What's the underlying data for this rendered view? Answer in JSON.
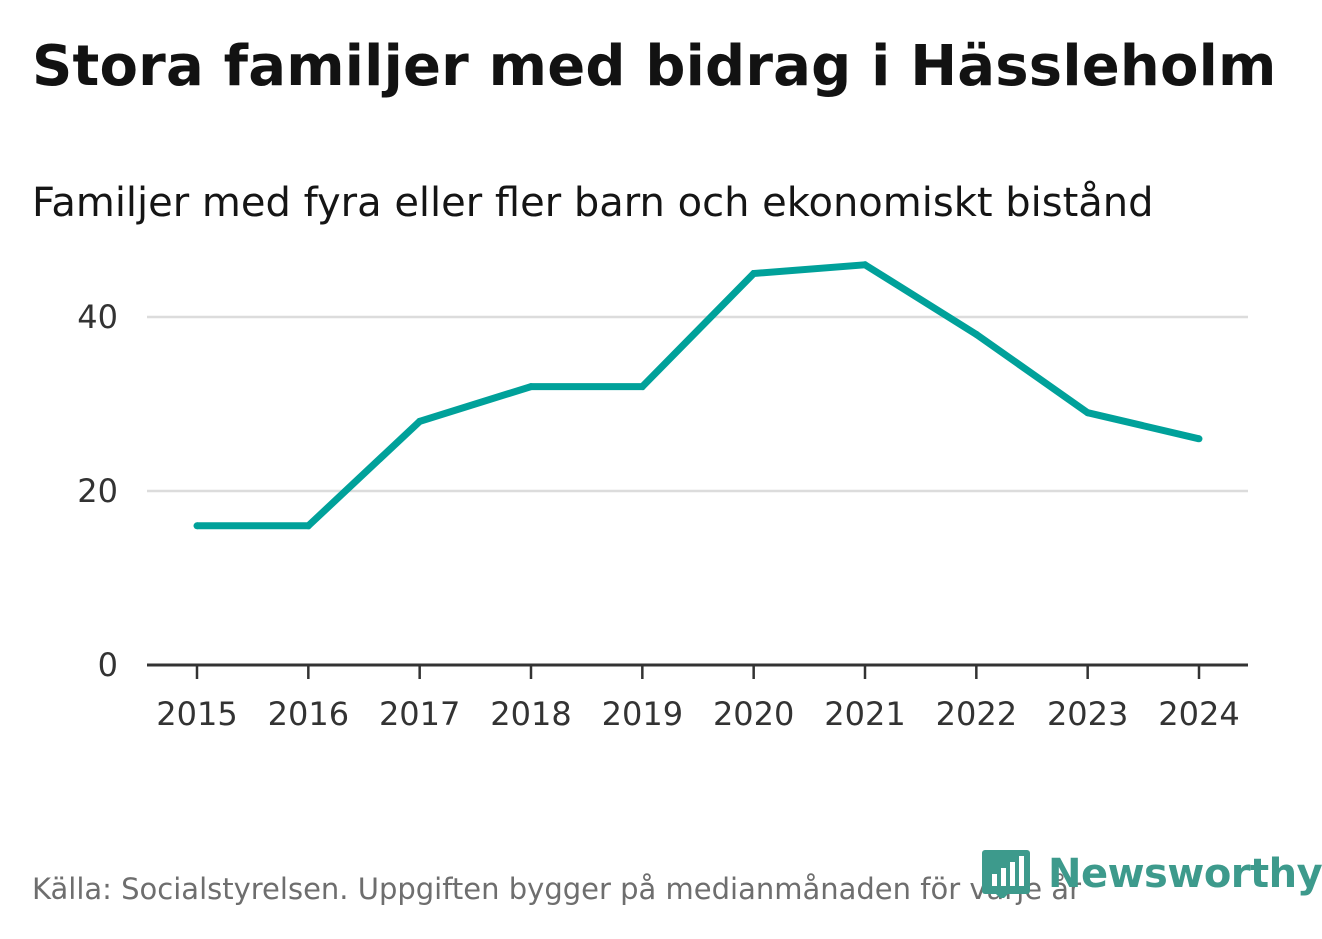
{
  "header": {
    "title": "Stora familjer med bidrag i Hässleholm",
    "subtitle": "Familjer med fyra eller fler barn och ekonomiskt bistånd"
  },
  "footer": {
    "source": "Källa: Socialstyrelsen. Uppgiften bygger på medianmånaden för varje år",
    "brand": "Newsworthy",
    "brand_color": "#3d9a8c"
  },
  "chart_data": {
    "type": "line",
    "title": "Stora familjer med bidrag i Hässleholm",
    "subtitle": "Familjer med fyra eller fler barn och ekonomiskt bistånd",
    "xlabel": "",
    "ylabel": "",
    "categories": [
      "2015",
      "2016",
      "2017",
      "2018",
      "2019",
      "2020",
      "2021",
      "2022",
      "2023",
      "2024"
    ],
    "series": [
      {
        "name": "Familjer",
        "values": [
          16,
          16,
          28,
          32,
          32,
          45,
          46,
          38,
          29,
          26
        ],
        "color": "#00a19a"
      }
    ],
    "yticks": [
      0,
      20,
      40
    ],
    "ylim": [
      0,
      50
    ],
    "grid": true,
    "legend": "none"
  }
}
